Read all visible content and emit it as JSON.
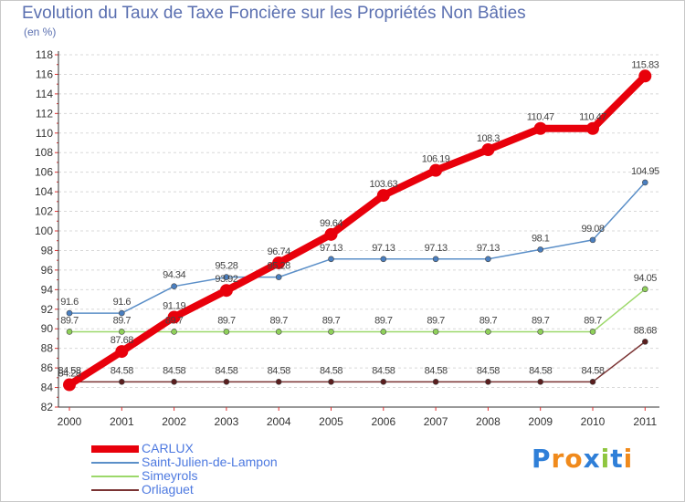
{
  "header": {
    "title": "Evolution du Taux de Taxe Foncière sur les Propriétés Non Bâties",
    "unit": "(en %)"
  },
  "logo": {
    "text": "Proxiti"
  },
  "chart_data": {
    "type": "line",
    "title": "Evolution du Taux de Taxe Foncière sur les Propriétés Non Bâties",
    "ylabel": "(en %)",
    "xlabel": "",
    "categories": [
      "2000",
      "2001",
      "2002",
      "2003",
      "2004",
      "2005",
      "2006",
      "2007",
      "2008",
      "2009",
      "2010",
      "2011"
    ],
    "ylim": [
      82,
      118
    ],
    "yticks": [
      82,
      84,
      86,
      88,
      90,
      92,
      94,
      96,
      98,
      100,
      102,
      104,
      106,
      108,
      110,
      112,
      114,
      116,
      118
    ],
    "grid": "horizontal-dashed",
    "legend_position": "bottom-left",
    "series": [
      {
        "name": "CARLUX",
        "color": "#e8000b",
        "values": [
          84.28,
          87.68,
          91.19,
          93.92,
          96.74,
          99.64,
          103.63,
          106.19,
          108.3,
          110.47,
          110.47,
          115.83
        ],
        "labels": [
          "84.28",
          "87.68",
          "91.19",
          "93.92",
          "96.74",
          "99.64",
          "103.63",
          "106.19",
          "108.3",
          "110.47",
          "110.47",
          "115.83"
        ]
      },
      {
        "name": "Saint-Julien-de-Lampon",
        "color": "#5b8fc8",
        "values": [
          91.6,
          91.6,
          94.34,
          95.28,
          95.28,
          97.13,
          97.13,
          97.13,
          97.13,
          98.1,
          99.08,
          104.95
        ],
        "labels": [
          "91.6",
          "91.6",
          "94.34",
          "95.28",
          "95.28",
          "97.13",
          "97.13",
          "97.13",
          "97.13",
          "98.1",
          "99.08",
          "104.95"
        ]
      },
      {
        "name": "Simeyrols",
        "color": "#9cd86a",
        "values": [
          89.7,
          89.7,
          89.7,
          89.7,
          89.7,
          89.7,
          89.7,
          89.7,
          89.7,
          89.7,
          89.7,
          94.05
        ],
        "labels": [
          "89.7",
          "89.7",
          "89.7",
          "89.7",
          "89.7",
          "89.7",
          "89.7",
          "89.7",
          "89.7",
          "89.7",
          "89.7",
          "94.05"
        ]
      },
      {
        "name": "Orliaguet",
        "color": "#7a3333",
        "values": [
          84.58,
          84.58,
          84.58,
          84.58,
          84.58,
          84.58,
          84.58,
          84.58,
          84.58,
          84.58,
          84.58,
          88.68
        ],
        "labels": [
          "84.58",
          "84.58",
          "84.58",
          "84.58",
          "84.58",
          "84.58",
          "84.58",
          "84.58",
          "84.58",
          "84.58",
          "84.58",
          "88.68"
        ]
      }
    ]
  }
}
